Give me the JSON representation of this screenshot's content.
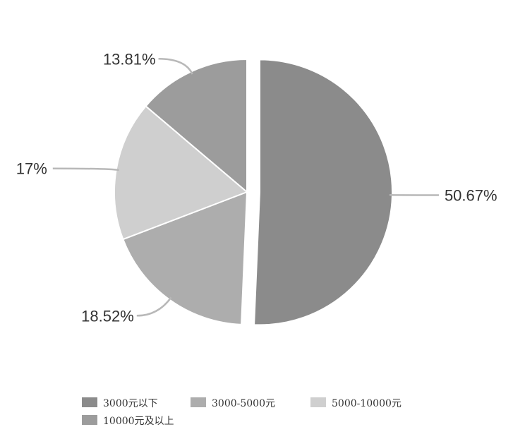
{
  "chart_data": {
    "type": "pie",
    "title": "",
    "categories": [
      "3000元以下",
      "3000-5000元",
      "5000-10000元",
      "10000元及以上"
    ],
    "values": [
      50.67,
      18.52,
      17,
      13.81
    ],
    "labels": [
      "50.67%",
      "18.52%",
      "17%",
      "13.81%"
    ],
    "colors": [
      "#8b8b8b",
      "#adadad",
      "#cfcfcf",
      "#9c9c9c"
    ],
    "exploded_slice": 0,
    "legend_position": "bottom"
  }
}
